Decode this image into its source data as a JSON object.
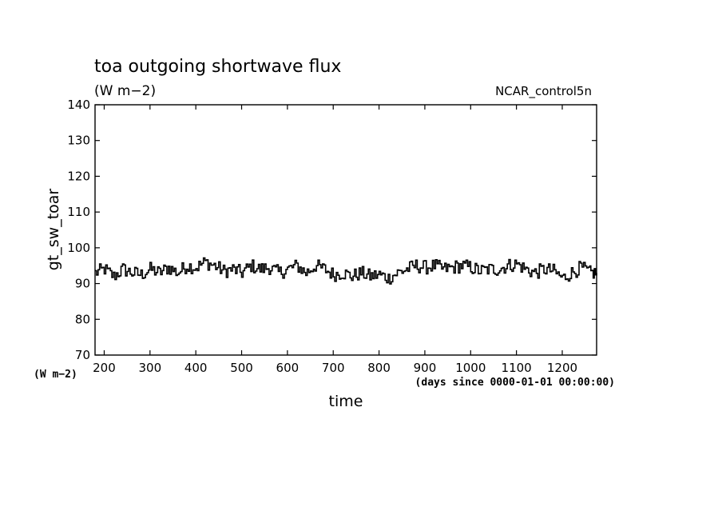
{
  "chart_data": {
    "type": "line",
    "title": "toa outgoing shortwave flux",
    "title_units": "(W m−2)",
    "experiment": "NCAR_control5n",
    "xlabel": "time",
    "x_units": "(days since 0000-01-01 00:00:00)",
    "ylabel": "gt_sw_toar",
    "y_units": "(W m−2)",
    "xlim": [
      180,
      1275
    ],
    "ylim": [
      70,
      140
    ],
    "x_ticks": [
      200,
      300,
      400,
      500,
      600,
      700,
      800,
      900,
      1000,
      1100,
      1200
    ],
    "y_ticks": [
      70,
      80,
      90,
      100,
      110,
      120,
      130,
      140
    ],
    "line_color": "#000000",
    "series": [
      {
        "x": [
          180,
          200,
          220,
          240,
          260,
          280,
          300,
          320,
          340,
          360,
          380,
          400,
          420,
          440,
          460,
          480,
          500,
          520,
          540,
          560,
          580,
          600,
          620,
          640,
          660,
          680,
          700,
          720,
          740,
          760,
          780,
          800,
          820,
          840,
          860,
          880,
          900,
          920,
          940,
          960,
          980,
          1000,
          1020,
          1040,
          1060,
          1080,
          1100,
          1120,
          1140,
          1160,
          1180,
          1200,
          1220,
          1240,
          1260,
          1275
        ],
        "y": [
          93,
          94,
          92,
          94,
          93,
          92.5,
          94,
          93,
          94.5,
          93,
          95,
          94.5,
          96,
          95,
          93.5,
          94,
          93,
          95,
          94,
          94.5,
          93,
          94,
          95,
          93,
          95,
          94,
          92.5,
          93,
          92,
          93,
          92,
          92.5,
          91.5,
          93,
          94,
          95,
          94.5,
          95,
          94,
          94.5,
          95,
          94.5,
          93.5,
          94,
          94,
          95,
          95.5,
          94,
          93,
          94,
          93.5,
          91.5,
          93,
          94.5,
          93,
          93
        ]
      }
    ]
  }
}
